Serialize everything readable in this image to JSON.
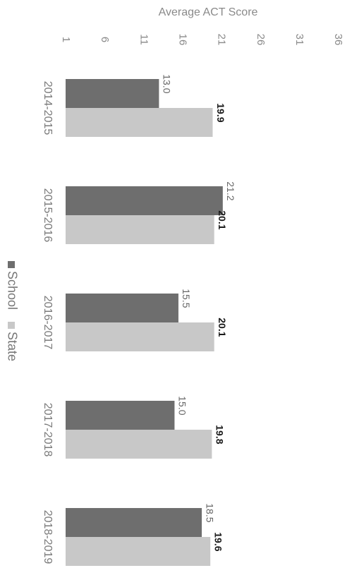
{
  "chart_data": {
    "type": "bar",
    "orientation": "horizontal",
    "rotated": "90deg-clockwise",
    "title": "",
    "xlabel": "Average ACT Score",
    "ylabel": "",
    "xlim": [
      1,
      36
    ],
    "xticks": [
      "1",
      "6",
      "11",
      "16",
      "21",
      "26",
      "31",
      "36"
    ],
    "categories": [
      "2014-2015",
      "2015-2016",
      "2016-2017",
      "2017-2018",
      "2018-2019"
    ],
    "series": [
      {
        "name": "School",
        "color": "#6e6e6e",
        "values": [
          13.0,
          21.2,
          15.5,
          15.0,
          18.5
        ],
        "labels": [
          "13.0",
          "21.2",
          "15.5",
          "15.0",
          "18.5"
        ]
      },
      {
        "name": "State",
        "color": "#c8c8c8",
        "values": [
          19.9,
          20.1,
          20.1,
          19.8,
          19.6
        ],
        "labels": [
          "19.9",
          "20.1",
          "20.1",
          "19.8",
          "19.6"
        ]
      }
    ],
    "legend_position": "left",
    "grid": false
  }
}
